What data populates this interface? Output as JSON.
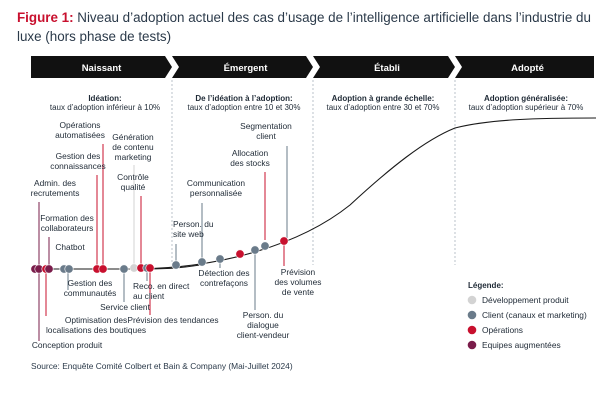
{
  "title": {
    "prefix": "Figure 1:",
    "text": "Niveau d’adoption actuel des cas d’usage de l’intelligence artificielle dans l’industrie du luxe (hors phase de tests)"
  },
  "source": "Source: Enquête Comité Colbert et Bain & Company (Mai-Juillet 2024)",
  "colors": {
    "developpement_produit": "#d3d3d3",
    "client": "#6a7b8a",
    "operations": "#c8102e",
    "equipes": "#7a1c4a",
    "phase_bar": "#111111",
    "curve": "#1a1a1a"
  },
  "chart_data": {
    "type": "scatter",
    "phases": [
      {
        "name": "Naissant",
        "subtitle_bold": "Idéation:",
        "subtitle": "taux d’adoption inférieur à 10%"
      },
      {
        "name": "Émergent",
        "subtitle_bold": "De l’idéation à l’adoption:",
        "subtitle": "taux d’adoption entre 10 et 30%"
      },
      {
        "name": "Établi",
        "subtitle_bold": "Adoption à grande échelle:",
        "subtitle": "taux d’adoption entre 30 et 70%"
      },
      {
        "name": "Adopté",
        "subtitle_bold": "Adoption généralisée:",
        "subtitle": "taux d’adoption supérieur à 70%"
      }
    ],
    "legend_title": "Légende:",
    "legend": [
      {
        "key": "developpement_produit",
        "label": "Développement produit"
      },
      {
        "key": "client",
        "label": "Client (canaux et marketing)"
      },
      {
        "key": "operations",
        "label": "Opérations"
      },
      {
        "key": "equipes",
        "label": "Equipes augmentées"
      }
    ],
    "points": [
      {
        "label": "Conception produit",
        "category": "equipes"
      },
      {
        "label": "Admin. des recrutements",
        "category": "equipes"
      },
      {
        "label": "Optimisation des localisations des boutiques",
        "category": "operations"
      },
      {
        "label": "Formation des collaborateurs",
        "category": "equipes"
      },
      {
        "label": "Chatbot",
        "category": "client"
      },
      {
        "label": "Gestion des communautés",
        "category": "client"
      },
      {
        "label": "Gestion des connaissances",
        "category": "operations"
      },
      {
        "label": "Opérations automatisées",
        "category": "operations"
      },
      {
        "label": "Service client",
        "category": "client"
      },
      {
        "label": "Génération de contenu marketing",
        "category": "developpement_produit"
      },
      {
        "label": "Contrôle qualité",
        "category": "operations"
      },
      {
        "label": "Reco. en direct au client",
        "category": "client"
      },
      {
        "label": "Prévision des tendances",
        "category": "operations"
      },
      {
        "label": "Person. du site web",
        "category": "client"
      },
      {
        "label": "Communication personnalisée",
        "category": "client"
      },
      {
        "label": "Détection des contrefaçons",
        "category": "client"
      },
      {
        "label": "Allocation des stocks",
        "category": "operations"
      },
      {
        "label": "Person. du dialogue client-vendeur",
        "category": "client"
      },
      {
        "label": "Segmentation client",
        "category": "client"
      },
      {
        "label": "Prévision des volumes de vente",
        "category": "operations"
      }
    ]
  }
}
